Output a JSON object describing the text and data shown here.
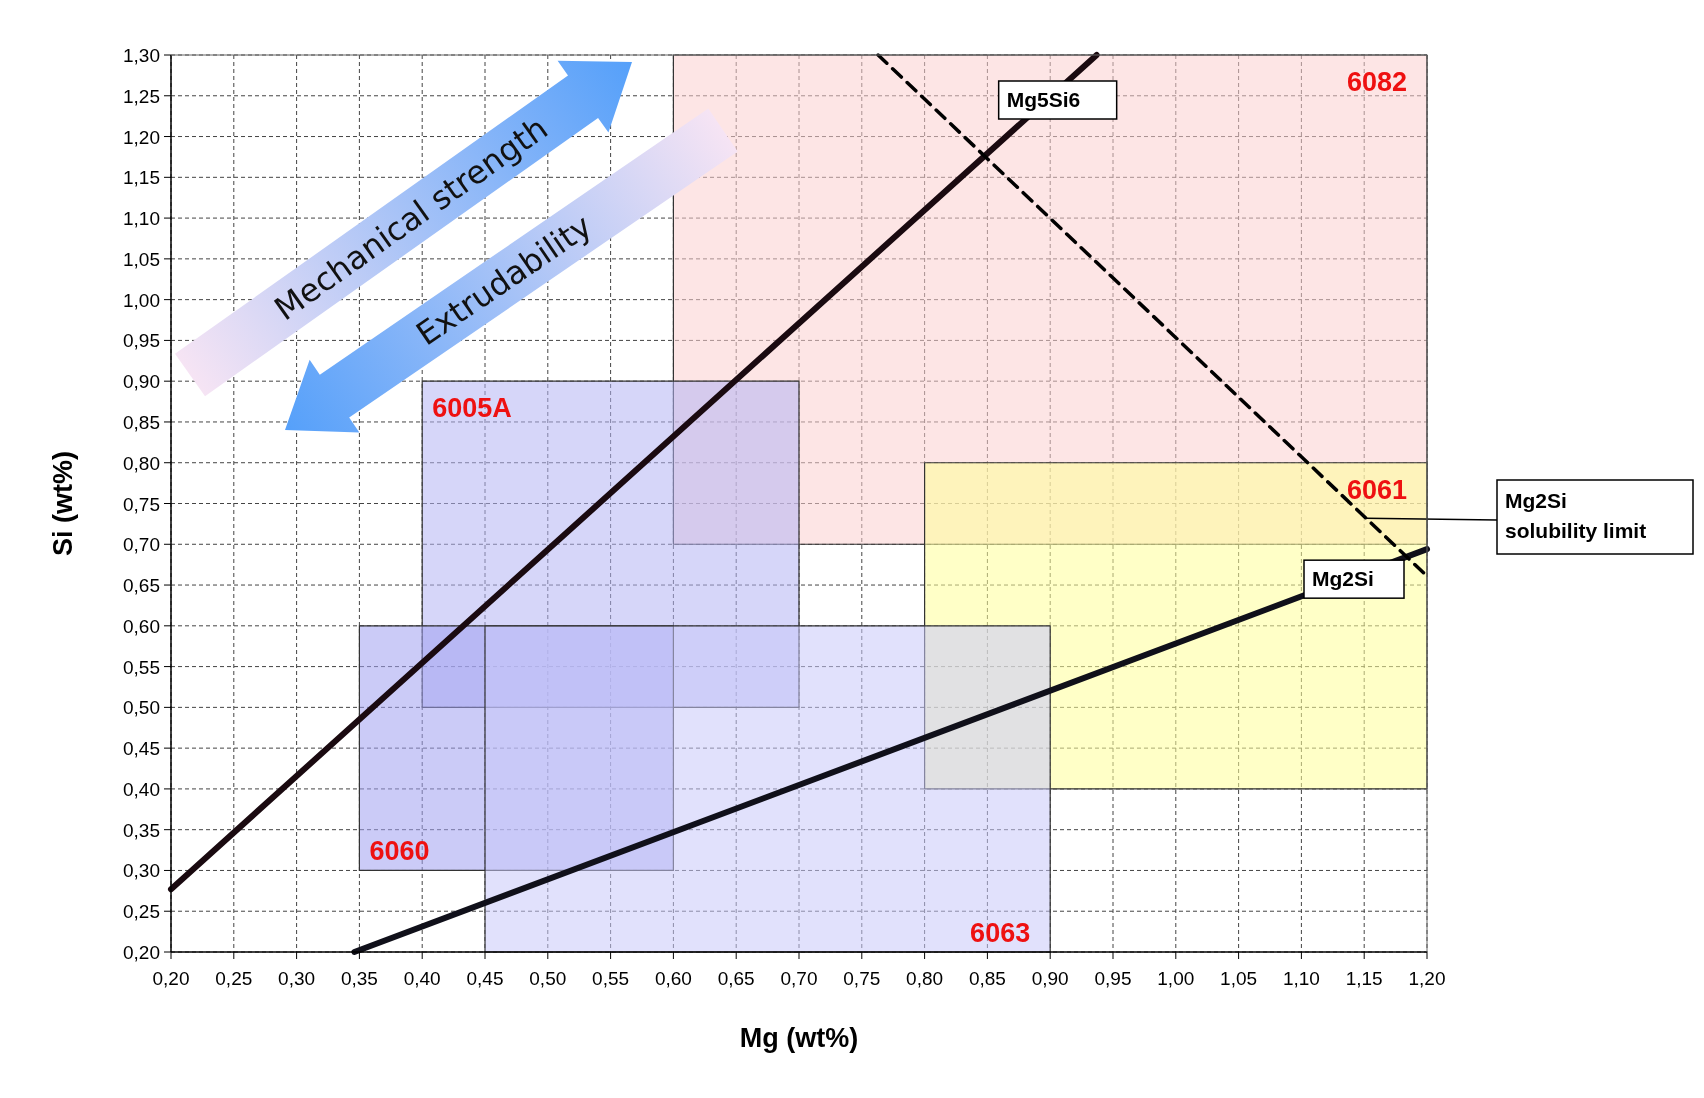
{
  "chart_data": {
    "type": "line",
    "xlabel": "Mg (wt%)",
    "ylabel": "Si (wt%)",
    "xlim": [
      0.2,
      1.2
    ],
    "ylim": [
      0.2,
      1.3
    ],
    "xticks": [
      {
        "value": 0.2,
        "label": "0,20"
      },
      {
        "value": 0.25,
        "label": "0,25"
      },
      {
        "value": 0.3,
        "label": "0,30"
      },
      {
        "value": 0.35,
        "label": "0,35"
      },
      {
        "value": 0.4,
        "label": "0,40"
      },
      {
        "value": 0.45,
        "label": "0,45"
      },
      {
        "value": 0.5,
        "label": "0,50"
      },
      {
        "value": 0.55,
        "label": "0,55"
      },
      {
        "value": 0.6,
        "label": "0,60"
      },
      {
        "value": 0.65,
        "label": "0,65"
      },
      {
        "value": 0.7,
        "label": "0,70"
      },
      {
        "value": 0.75,
        "label": "0,75"
      },
      {
        "value": 0.8,
        "label": "0,80"
      },
      {
        "value": 0.85,
        "label": "0,85"
      },
      {
        "value": 0.9,
        "label": "0,90"
      },
      {
        "value": 0.95,
        "label": "0,95"
      },
      {
        "value": 1.0,
        "label": "1,00"
      },
      {
        "value": 1.05,
        "label": "1,05"
      },
      {
        "value": 1.1,
        "label": "1,10"
      },
      {
        "value": 1.15,
        "label": "1,15"
      },
      {
        "value": 1.2,
        "label": "1,20"
      }
    ],
    "yticks": [
      {
        "value": 0.2,
        "label": "0,20"
      },
      {
        "value": 0.25,
        "label": "0,25"
      },
      {
        "value": 0.3,
        "label": "0,30"
      },
      {
        "value": 0.35,
        "label": "0,35"
      },
      {
        "value": 0.4,
        "label": "0,40"
      },
      {
        "value": 0.45,
        "label": "0,45"
      },
      {
        "value": 0.5,
        "label": "0,50"
      },
      {
        "value": 0.55,
        "label": "0,55"
      },
      {
        "value": 0.6,
        "label": "0,60"
      },
      {
        "value": 0.65,
        "label": "0,65"
      },
      {
        "value": 0.7,
        "label": "0,70"
      },
      {
        "value": 0.75,
        "label": "0,75"
      },
      {
        "value": 0.8,
        "label": "0,80"
      },
      {
        "value": 0.85,
        "label": "0,85"
      },
      {
        "value": 0.9,
        "label": "0,90"
      },
      {
        "value": 0.95,
        "label": "0,95"
      },
      {
        "value": 1.0,
        "label": "1,00"
      },
      {
        "value": 1.05,
        "label": "1,05"
      },
      {
        "value": 1.1,
        "label": "1,10"
      },
      {
        "value": 1.15,
        "label": "1,15"
      },
      {
        "value": 1.2,
        "label": "1,20"
      },
      {
        "value": 1.25,
        "label": "1,25"
      },
      {
        "value": 1.3,
        "label": "1,30"
      }
    ],
    "grid": true,
    "series": [
      {
        "name": "6082",
        "type": "area",
        "color": "#fbd0d0",
        "x": [
          0.6,
          1.2,
          1.2,
          0.6,
          0.6
        ],
        "values": [
          0.7,
          0.7,
          1.3,
          1.3,
          0.7
        ]
      },
      {
        "name": "6061",
        "type": "area",
        "color": "#ffff99",
        "x": [
          0.8,
          1.2,
          1.2,
          0.8,
          0.8
        ],
        "values": [
          0.4,
          0.4,
          0.8,
          0.8,
          0.4
        ]
      },
      {
        "name": "6005A",
        "type": "area",
        "color": "#b4b4f4",
        "x": [
          0.4,
          0.7,
          0.7,
          0.4,
          0.4
        ],
        "values": [
          0.5,
          0.5,
          0.9,
          0.9,
          0.5
        ]
      },
      {
        "name": "6060",
        "type": "area",
        "color": "#a0a0f0",
        "x": [
          0.35,
          0.6,
          0.6,
          0.35,
          0.35
        ],
        "values": [
          0.3,
          0.3,
          0.6,
          0.6,
          0.3
        ]
      },
      {
        "name": "6063",
        "type": "area",
        "color": "#c8c8fa",
        "x": [
          0.45,
          0.9,
          0.9,
          0.45,
          0.45
        ],
        "values": [
          0.2,
          0.2,
          0.6,
          0.6,
          0.2
        ]
      },
      {
        "name": "Mg5Si6",
        "color": "#1a0a10",
        "x": [
          0.2,
          0.937
        ],
        "values": [
          0.277,
          1.3
        ]
      },
      {
        "name": "Mg2Si",
        "color": "#10101a",
        "x": [
          0.346,
          1.2
        ],
        "values": [
          0.2,
          0.694
        ]
      },
      {
        "name": "Mg2Si solubility limit",
        "line_style": "dashed",
        "color": "#000000",
        "x": [
          0.763,
          1.2
        ],
        "values": [
          1.3,
          0.661
        ]
      }
    ],
    "annotations": [
      "Mechanical strength",
      "Extrudability"
    ]
  }
}
